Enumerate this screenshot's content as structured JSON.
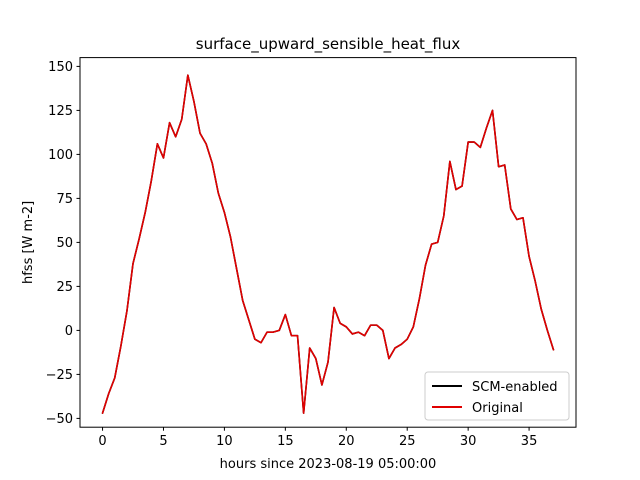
{
  "chart_data": {
    "type": "line",
    "title": "surface_upward_sensible_heat_flux",
    "xlabel": "hours since 2023-08-19 05:00:00",
    "ylabel": "hfss [W m-2]",
    "xlim": [
      -1.85,
      38.85
    ],
    "ylim": [
      -55,
      155
    ],
    "xticks": [
      0,
      5,
      10,
      15,
      20,
      25,
      30,
      35
    ],
    "yticks": [
      -50,
      -25,
      0,
      25,
      50,
      75,
      100,
      125,
      150
    ],
    "grid": false,
    "legend_position": "lower right",
    "x": [
      0,
      0.5,
      1,
      1.5,
      2,
      2.5,
      3,
      3.5,
      4,
      4.5,
      5,
      5.5,
      6,
      6.5,
      7,
      7.5,
      8,
      8.5,
      9,
      9.5,
      10,
      10.5,
      11,
      11.5,
      12,
      12.5,
      13,
      13.5,
      14,
      14.5,
      15,
      15.5,
      16,
      16.5,
      17,
      17.5,
      18,
      18.5,
      19,
      19.5,
      20,
      20.5,
      21,
      21.5,
      22,
      22.5,
      23,
      23.5,
      24,
      24.5,
      25,
      25.5,
      26,
      26.5,
      27,
      27.5,
      28,
      28.5,
      29,
      29.5,
      30,
      30.5,
      31,
      31.5,
      32,
      32.5,
      33,
      33.5,
      34,
      34.5,
      35,
      35.5,
      36,
      36.5,
      37
    ],
    "series": [
      {
        "name": "SCM-enabled",
        "color": "#000000",
        "values": [
          -47,
          -36,
          -27,
          -9,
          11,
          38,
          52,
          67,
          85,
          106,
          98,
          118,
          110,
          120,
          145,
          130,
          112,
          106,
          95,
          78,
          67,
          53,
          35,
          17,
          6,
          -5,
          -7,
          -1,
          -1,
          0,
          9,
          -3,
          -3,
          -47,
          -10,
          -16,
          -31,
          -18,
          13,
          4,
          2,
          -2,
          -1,
          -3,
          3,
          3,
          0,
          -16,
          -10,
          -8,
          -5,
          2,
          18,
          37,
          49,
          50,
          65,
          96,
          80,
          82,
          107,
          107,
          104,
          115,
          125,
          93,
          94,
          69,
          63,
          64,
          42,
          28,
          12,
          0,
          -11
        ]
      },
      {
        "name": "Original",
        "color": "#e00000",
        "values": [
          -47,
          -36,
          -27,
          -9,
          11,
          38,
          52,
          67,
          85,
          106,
          98,
          118,
          110,
          120,
          145,
          130,
          112,
          106,
          95,
          78,
          67,
          53,
          35,
          17,
          6,
          -5,
          -7,
          -1,
          -1,
          0,
          9,
          -3,
          -3,
          -47,
          -10,
          -16,
          -31,
          -18,
          13,
          4,
          2,
          -2,
          -1,
          -3,
          3,
          3,
          0,
          -16,
          -10,
          -8,
          -5,
          2,
          18,
          37,
          49,
          50,
          65,
          96,
          80,
          82,
          107,
          107,
          104,
          115,
          125,
          93,
          94,
          69,
          63,
          64,
          42,
          28,
          12,
          0,
          -11
        ]
      }
    ]
  }
}
